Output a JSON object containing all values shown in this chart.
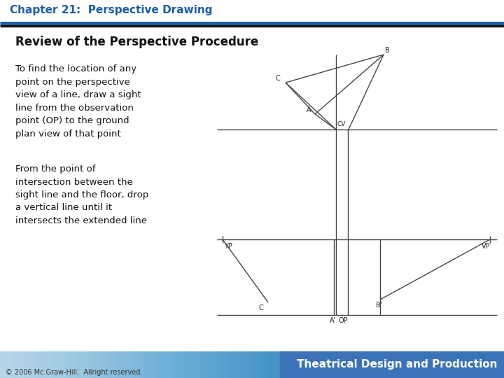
{
  "title": "Chapter 21:  Perspective Drawing",
  "subtitle": "Review of the Perspective Procedure",
  "text1": "To find the location of any\npoint on the perspective\nview of a line, draw a sight\nline from the observation\npoint (OP) to the ground\nplan view of that point",
  "text2": "From the point of\nintersection between the\nsight line and the floor, drop\na vertical line until it\nintersects the extended line",
  "copyright": "© 2006 Mc.Graw-Hill.  Allright reserved.",
  "footer": "Theatrical Design and Production",
  "title_color": "#1a5ca8",
  "header_bar1_color": "#1a5ca8",
  "header_bar2_color": "#111111",
  "footer_text_color": "#ffffff",
  "bg_color": "#ffffff",
  "line_color": "#444444"
}
